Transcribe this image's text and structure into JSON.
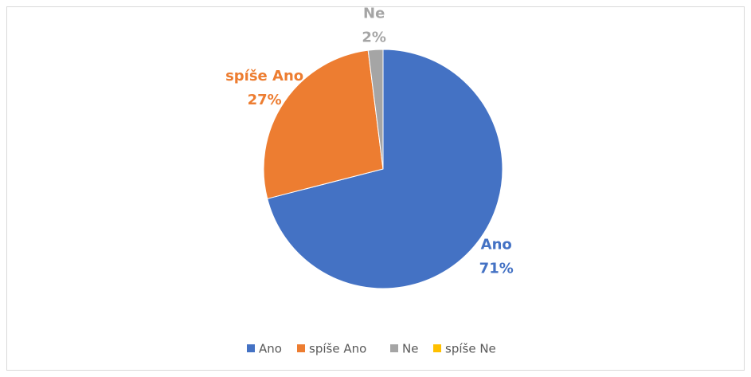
{
  "chart_data": {
    "type": "pie",
    "categories": [
      "Ano",
      "spíše Ano",
      "Ne",
      "spíše Ne"
    ],
    "values": [
      71,
      27,
      2,
      0
    ],
    "value_labels": [
      "71%",
      "27%",
      "2%",
      null
    ],
    "colors": [
      "#4472c4",
      "#ed7d31",
      "#a5a5a5",
      "#ffc000"
    ]
  }
}
